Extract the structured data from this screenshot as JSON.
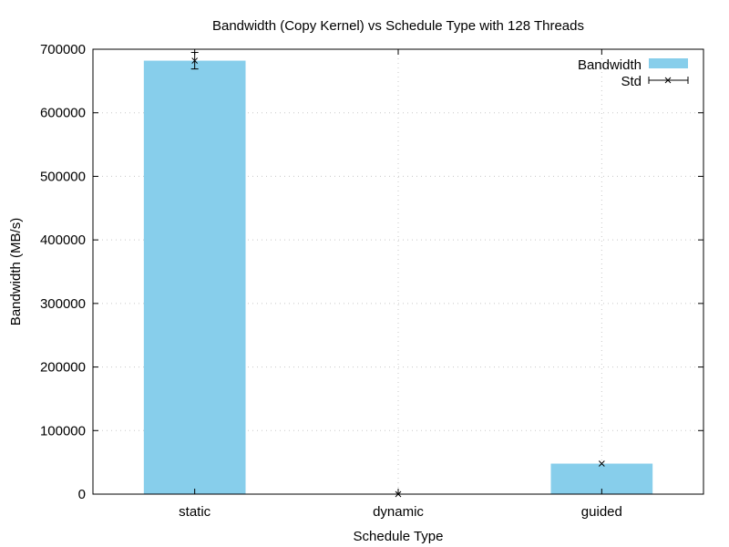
{
  "chart_data": {
    "type": "bar",
    "title": "Bandwidth (Copy Kernel) vs Schedule Type with 128 Threads",
    "xlabel": "Schedule Type",
    "ylabel": "Bandwidth (MB/s)",
    "categories": [
      "static",
      "dynamic",
      "guided"
    ],
    "series": [
      {
        "name": "Bandwidth",
        "values": [
          682000,
          0,
          48000
        ],
        "color": "#87ceeb"
      }
    ],
    "error": {
      "name": "Std",
      "centers": [
        682000,
        0,
        48000
      ],
      "std": [
        13000,
        0,
        0
      ]
    },
    "ylim": [
      0,
      700000
    ],
    "yticks": [
      0,
      100000,
      200000,
      300000,
      400000,
      500000,
      600000,
      700000
    ],
    "ytick_labels": [
      "0",
      "100000",
      "200000",
      "300000",
      "400000",
      "500000",
      "600000",
      "700000"
    ],
    "grid": true,
    "legend": [
      "Bandwidth",
      "Std"
    ],
    "legend_position": "top-right"
  }
}
